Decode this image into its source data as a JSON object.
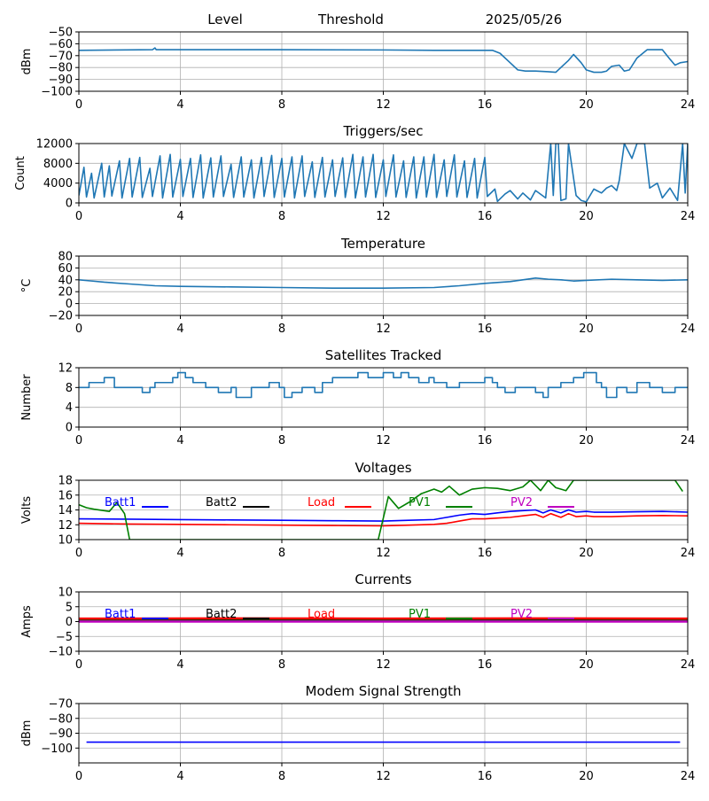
{
  "header": {
    "col1": "Level",
    "col2": "Threshold",
    "col3": "2025/05/26"
  },
  "colors": {
    "series_default": "#1f77b4",
    "grid": "#b0b0b0",
    "axis": "#000000",
    "batt1": "#0000ff",
    "batt2": "#000000",
    "load": "#ff0000",
    "pv1": "#008000",
    "pv2": "#bf00bf"
  },
  "chart_data": [
    {
      "id": "level",
      "type": "line",
      "title": "",
      "ylabel": "dBm",
      "xlim": [
        0,
        24
      ],
      "ylim": [
        -100,
        -50
      ],
      "xticks": [
        0,
        4,
        8,
        12,
        16,
        20,
        24
      ],
      "yticks": [
        -50,
        -60,
        -70,
        -80,
        -90,
        -100
      ],
      "grid": true,
      "series": [
        {
          "x": [
            0.0,
            2.9,
            3.0,
            3.05,
            3.2,
            8.0,
            12.0,
            14.0,
            16.3,
            16.6,
            17.0,
            17.3,
            17.6,
            18.0,
            18.5,
            18.8,
            19.0,
            19.3,
            19.5,
            19.8,
            20.0,
            20.3,
            20.6,
            20.8,
            21.0,
            21.3,
            21.5,
            21.7,
            22.0,
            22.4,
            22.8,
            23.0,
            23.3,
            23.5,
            23.7,
            24.0
          ],
          "values": [
            -65.5,
            -65,
            -63.5,
            -65,
            -65,
            -65,
            -65.2,
            -65.5,
            -65.5,
            -68,
            -76,
            -82,
            -83,
            -83,
            -83.5,
            -84,
            -80,
            -74,
            -69,
            -76,
            -82,
            -84,
            -84,
            -83,
            -79,
            -78,
            -83,
            -82,
            -72,
            -65,
            -65,
            -65,
            -73,
            -78,
            -76,
            -75
          ]
        }
      ]
    },
    {
      "id": "triggers",
      "type": "line",
      "title": "Triggers/sec",
      "ylabel": "Count",
      "xlim": [
        0,
        24
      ],
      "ylim": [
        0,
        12000
      ],
      "xticks": [
        0,
        4,
        8,
        12,
        16,
        20,
        24
      ],
      "yticks": [
        0,
        4000,
        8000,
        12000
      ],
      "grid": true,
      "series": [
        {
          "x": [
            0.0,
            0.2,
            0.3,
            0.5,
            0.6,
            0.9,
            1.0,
            1.2,
            1.3,
            1.6,
            1.7,
            2.0,
            2.1,
            2.4,
            2.5,
            2.8,
            2.9,
            3.2,
            3.3,
            3.6,
            3.7,
            4.0,
            4.1,
            4.4,
            4.5,
            4.8,
            4.9,
            5.2,
            5.3,
            5.6,
            5.7,
            6.0,
            6.1,
            6.4,
            6.5,
            6.8,
            6.9,
            7.2,
            7.3,
            7.6,
            7.7,
            8.0,
            8.1,
            8.4,
            8.5,
            8.8,
            8.9,
            9.2,
            9.3,
            9.6,
            9.7,
            10.0,
            10.1,
            10.4,
            10.5,
            10.8,
            10.9,
            11.2,
            11.3,
            11.6,
            11.7,
            12.0,
            12.1,
            12.4,
            12.5,
            12.8,
            12.9,
            13.2,
            13.3,
            13.6,
            13.7,
            14.0,
            14.1,
            14.4,
            14.5,
            14.8,
            14.9,
            15.2,
            15.3,
            15.6,
            15.7,
            16.0,
            16.1,
            16.4,
            16.5,
            16.8,
            17.0,
            17.3,
            17.5,
            17.8,
            18.0,
            18.4,
            18.6,
            18.7,
            18.8,
            18.9,
            19.0,
            19.2,
            19.3,
            19.6,
            19.8,
            20.0,
            20.3,
            20.6,
            20.8,
            21.0,
            21.2,
            21.3,
            21.5,
            21.8,
            22.0,
            22.3,
            22.5,
            22.8,
            23.0,
            23.3,
            23.6,
            23.8,
            23.9,
            24.0
          ],
          "values": [
            1500,
            7200,
            1200,
            6000,
            1000,
            8000,
            1200,
            7500,
            1400,
            8500,
            1000,
            9000,
            1200,
            9200,
            1100,
            7000,
            1300,
            9500,
            1000,
            9800,
            1200,
            8800,
            1300,
            9000,
            1100,
            9700,
            1000,
            9100,
            1200,
            9500,
            1300,
            7800,
            1100,
            9300,
            1200,
            8700,
            1000,
            9200,
            1300,
            9600,
            1100,
            9000,
            1200,
            9300,
            1000,
            9500,
            1300,
            8300,
            1100,
            9200,
            1200,
            8700,
            1300,
            9100,
            1100,
            9800,
            1000,
            9300,
            1200,
            9800,
            1100,
            8700,
            1300,
            9700,
            1200,
            8500,
            1100,
            9300,
            1000,
            9300,
            1200,
            9800,
            1100,
            8700,
            1300,
            9700,
            1200,
            8500,
            1100,
            9000,
            1000,
            9200,
            1300,
            2800,
            300,
            1800,
            2500,
            800,
            2000,
            600,
            2500,
            1000,
            12000,
            1500,
            12000,
            12000,
            500,
            800,
            12000,
            1500,
            500,
            200,
            2800,
            2000,
            3000,
            3500,
            2500,
            4500,
            12000,
            9000,
            12000,
            12000,
            3000,
            4000,
            1000,
            3000,
            500,
            12000,
            2000,
            12000
          ]
        }
      ]
    },
    {
      "id": "temperature",
      "type": "line",
      "title": "Temperature",
      "ylabel": "°C",
      "xlim": [
        0,
        24
      ],
      "ylim": [
        -20,
        80
      ],
      "xticks": [
        0,
        4,
        8,
        12,
        16,
        20,
        24
      ],
      "yticks": [
        -20,
        0,
        20,
        40,
        60,
        80
      ],
      "grid": true,
      "series": [
        {
          "x": [
            0,
            0.5,
            1,
            2,
            3,
            4,
            6,
            8,
            10,
            12,
            14,
            15,
            16,
            17,
            17.5,
            18,
            18.5,
            19,
            19.5,
            20,
            21,
            22,
            23,
            24
          ],
          "values": [
            40,
            38,
            36,
            33,
            30,
            29,
            28,
            27,
            26,
            26,
            27,
            30,
            34,
            37,
            40,
            43,
            41,
            40,
            38,
            39,
            41,
            40,
            39,
            40
          ]
        }
      ]
    },
    {
      "id": "satellites",
      "type": "line",
      "title": "Satellites Tracked",
      "ylabel": "Number",
      "xlim": [
        0,
        24
      ],
      "ylim": [
        0,
        12
      ],
      "xticks": [
        0,
        4,
        8,
        12,
        16,
        20,
        24
      ],
      "yticks": [
        0,
        4,
        8,
        12
      ],
      "grid": true,
      "step": true,
      "series": [
        {
          "x": [
            0,
            0.4,
            0.8,
            1.0,
            1.2,
            1.4,
            2.0,
            2.5,
            2.8,
            3.0,
            3.5,
            3.7,
            3.9,
            4.2,
            4.5,
            5.0,
            5.5,
            6.0,
            6.2,
            6.8,
            7.5,
            7.9,
            8.1,
            8.4,
            8.8,
            9.3,
            9.6,
            10.0,
            10.5,
            11.0,
            11.4,
            11.8,
            12.0,
            12.4,
            12.7,
            13.0,
            13.4,
            13.8,
            14.0,
            14.5,
            15.0,
            15.5,
            16.0,
            16.3,
            16.5,
            16.8,
            17.2,
            18.0,
            18.3,
            18.5,
            19.0,
            19.5,
            19.7,
            19.9,
            20.4,
            20.6,
            20.8,
            21.2,
            21.6,
            22.0,
            22.5,
            23.0,
            23.5,
            24.0
          ],
          "values": [
            8,
            9,
            9,
            10,
            10,
            8,
            8,
            7,
            8,
            9,
            9,
            10,
            11,
            10,
            9,
            8,
            7,
            8,
            6,
            8,
            9,
            8,
            6,
            7,
            8,
            7,
            9,
            10,
            10,
            11,
            10,
            10,
            11,
            10,
            11,
            10,
            9,
            10,
            9,
            8,
            9,
            9,
            10,
            9,
            8,
            7,
            8,
            7,
            6,
            8,
            9,
            10,
            10,
            11,
            9,
            8,
            6,
            8,
            7,
            9,
            8,
            7,
            8,
            8
          ]
        }
      ]
    },
    {
      "id": "voltages",
      "type": "line",
      "title": "Voltages",
      "ylabel": "Volts",
      "xlim": [
        0,
        24
      ],
      "ylim": [
        10,
        18
      ],
      "xticks": [
        0,
        4,
        8,
        12,
        16,
        20,
        24
      ],
      "yticks": [
        10,
        12,
        14,
        16,
        18
      ],
      "grid": true,
      "legend": "top, inline",
      "series": [
        {
          "name": "Batt1",
          "color": "batt1",
          "x": [
            0,
            2,
            4,
            6,
            8,
            10,
            12,
            13,
            14,
            14.5,
            15,
            15.5,
            16,
            16.5,
            17,
            17.5,
            18,
            18.3,
            18.6,
            19,
            19.3,
            19.6,
            20,
            20.3,
            21,
            22,
            23,
            24
          ],
          "values": [
            12.8,
            12.75,
            12.7,
            12.65,
            12.6,
            12.55,
            12.5,
            12.6,
            12.7,
            13.0,
            13.3,
            13.5,
            13.4,
            13.6,
            13.8,
            13.9,
            14.0,
            13.6,
            14.0,
            13.6,
            14.0,
            13.7,
            13.8,
            13.7,
            13.7,
            13.75,
            13.8,
            13.7
          ]
        },
        {
          "name": "Batt2",
          "color": "batt2",
          "x": [],
          "values": []
        },
        {
          "name": "Load",
          "color": "load",
          "x": [
            0,
            2,
            4,
            6,
            8,
            10,
            12,
            13,
            14,
            14.5,
            15,
            15.5,
            16,
            16.5,
            17,
            17.5,
            18,
            18.3,
            18.6,
            19,
            19.3,
            19.6,
            20,
            20.3,
            21,
            22,
            23,
            24
          ],
          "values": [
            12.2,
            12.1,
            12.05,
            12.0,
            11.95,
            11.9,
            11.85,
            11.95,
            12.05,
            12.2,
            12.5,
            12.8,
            12.8,
            12.9,
            13.0,
            13.2,
            13.4,
            13.0,
            13.5,
            13.0,
            13.5,
            13.1,
            13.2,
            13.1,
            13.1,
            13.2,
            13.25,
            13.2
          ]
        },
        {
          "name": "PV1",
          "color": "pv1",
          "x": [
            0,
            0.3,
            0.6,
            1.2,
            1.5,
            1.8,
            2.0,
            11.8,
            12.2,
            12.6,
            13.0,
            13.5,
            14.0,
            14.3,
            14.6,
            15.0,
            15.5,
            16.0,
            16.5,
            17.0,
            17.5,
            17.8,
            18.2,
            18.5,
            18.8,
            19.2,
            19.5,
            23.5,
            23.8
          ],
          "values": [
            14.7,
            14.3,
            14.1,
            13.8,
            15.0,
            13.5,
            10.0,
            10.0,
            15.8,
            14.2,
            15.0,
            16.2,
            16.8,
            16.4,
            17.2,
            16.0,
            16.8,
            17.0,
            16.9,
            16.6,
            17.1,
            18.0,
            16.6,
            18.0,
            17.0,
            16.6,
            18.0,
            18.0,
            16.5
          ]
        },
        {
          "name": "PV2",
          "color": "pv2",
          "x": [],
          "values": []
        }
      ]
    },
    {
      "id": "currents",
      "type": "line",
      "title": "Currents",
      "ylabel": "Amps",
      "xlim": [
        0,
        24
      ],
      "ylim": [
        -10,
        10
      ],
      "xticks": [
        0,
        4,
        8,
        12,
        16,
        20,
        24
      ],
      "yticks": [
        -10,
        -5,
        0,
        5,
        10
      ],
      "grid": true,
      "legend": "top, inline",
      "series": [
        {
          "name": "Batt1",
          "color": "batt1",
          "x": [
            0,
            24
          ],
          "values": [
            0.5,
            0.5
          ]
        },
        {
          "name": "Batt2",
          "color": "batt2",
          "x": [
            0,
            24
          ],
          "values": [
            0.7,
            0.7
          ]
        },
        {
          "name": "Load",
          "color": "load",
          "x": [
            0,
            6,
            12,
            18,
            24
          ],
          "values": [
            1.0,
            1.1,
            1.0,
            1.1,
            1.0
          ]
        },
        {
          "name": "PV1",
          "color": "pv1",
          "x": [
            0,
            24
          ],
          "values": [
            0.2,
            0.2
          ]
        },
        {
          "name": "PV2",
          "color": "pv2",
          "x": [
            0,
            24
          ],
          "values": [
            0.0,
            0.0
          ]
        }
      ]
    },
    {
      "id": "modem",
      "type": "line",
      "title": "Modem Signal Strength",
      "ylabel": "dBm",
      "xlim": [
        0,
        24
      ],
      "ylim": [
        -110,
        -70
      ],
      "xticks": [
        0,
        4,
        8,
        12,
        16,
        20,
        24
      ],
      "yticks": [
        -70,
        -80,
        -90,
        -100
      ],
      "grid": true,
      "series": [
        {
          "color": "batt1",
          "x": [
            0.3,
            23.7
          ],
          "values": [
            -96,
            -96
          ]
        }
      ]
    }
  ]
}
